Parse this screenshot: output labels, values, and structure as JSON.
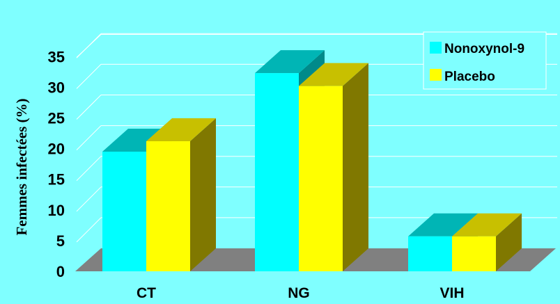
{
  "chart_data": {
    "type": "bar",
    "categories": [
      "CT",
      "NG",
      "VIH"
    ],
    "series": [
      {
        "name": "Nonoxynol-9",
        "values": [
          19.5,
          32.3,
          5.7
        ],
        "color": "#00FFFF",
        "top_color": "#00B5B5",
        "side_color": "#008A8A"
      },
      {
        "name": "Placebo",
        "values": [
          21.2,
          30.2,
          5.7
        ],
        "color": "#FFFF00",
        "top_color": "#C8C000",
        "side_color": "#807800"
      }
    ],
    "title": "",
    "xlabel": "",
    "ylabel": "Femmes infectées (%)",
    "ylim": [
      0,
      35
    ],
    "yticks": [
      0,
      5,
      10,
      15,
      20,
      25,
      30,
      35
    ],
    "grid": true,
    "legend_position": "top-right",
    "floor_color": "#808080",
    "background": "#7FFFFF"
  }
}
